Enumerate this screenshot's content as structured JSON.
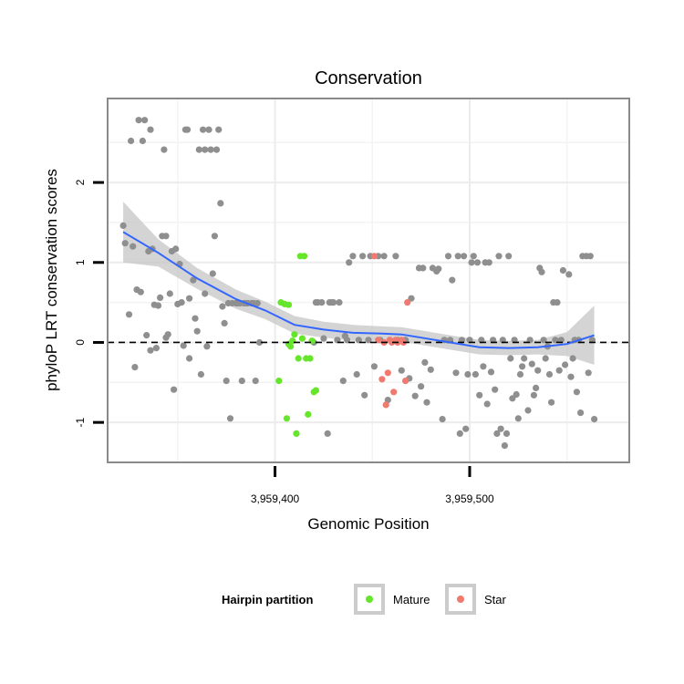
{
  "chart_data": {
    "type": "scatter",
    "title": "Conservation",
    "xlabel": "Genomic Position",
    "ylabel": "phyloP LRT conservation scores",
    "xlim": [
      3959314,
      3959582
    ],
    "ylim": [
      -1.5,
      3.05
    ],
    "x_ticks": [
      3959400,
      3959500
    ],
    "x_tick_labels": [
      "3,959,400",
      "3,959,500"
    ],
    "y_ticks": [
      -1,
      0,
      1,
      2
    ],
    "y_tick_labels": [
      "-1",
      "0",
      "1",
      "2"
    ],
    "reference_line": 0,
    "legend": {
      "title": "Hairpin partition",
      "position": "bottom",
      "entries": [
        {
          "name": "Mature",
          "color": "#66e62a"
        },
        {
          "name": "Star",
          "color": "#f07a6f"
        }
      ]
    },
    "colors": {
      "Other": "#8f8f8f",
      "Mature": "#66e62a",
      "Star": "#f07a6f",
      "smooth_line": "#3366ff",
      "confidence_band": "#c6c6c6"
    },
    "series": [
      {
        "name": "Other",
        "points": [
          [
            3959322,
            1.46
          ],
          [
            3959323,
            1.24
          ],
          [
            3959325,
            0.35
          ],
          [
            3959326,
            2.52
          ],
          [
            3959327,
            1.2
          ],
          [
            3959328,
            -0.31
          ],
          [
            3959329,
            0.66
          ],
          [
            3959330,
            2.78
          ],
          [
            3959331,
            0.63
          ],
          [
            3959332,
            2.52
          ],
          [
            3959333,
            2.78
          ],
          [
            3959334,
            0.09
          ],
          [
            3959335,
            1.14
          ],
          [
            3959336,
            2.66
          ],
          [
            3959337,
            1.17
          ],
          [
            3959338,
            0.47
          ],
          [
            3959339,
            -0.07
          ],
          [
            3959340,
            0.46
          ],
          [
            3959341,
            0.56
          ],
          [
            3959342,
            1.33
          ],
          [
            3959343,
            2.41
          ],
          [
            3959344,
            1.33
          ],
          [
            3959345,
            0.1
          ],
          [
            3959346,
            0.61
          ],
          [
            3959347,
            1.14
          ],
          [
            3959348,
            -0.59
          ],
          [
            3959349,
            1.17
          ],
          [
            3959350,
            0.48
          ],
          [
            3959351,
            0.98
          ],
          [
            3959352,
            0.5
          ],
          [
            3959353,
            -0.04
          ],
          [
            3959354,
            2.66
          ],
          [
            3959355,
            2.66
          ],
          [
            3959356,
            0.55
          ],
          [
            3959358,
            0.78
          ],
          [
            3959359,
            0.3
          ],
          [
            3959360,
            0.14
          ],
          [
            3959361,
            2.41
          ],
          [
            3959362,
            -0.4
          ],
          [
            3959363,
            2.66
          ],
          [
            3959364,
            2.41
          ],
          [
            3959365,
            -0.05
          ],
          [
            3959366,
            2.66
          ],
          [
            3959367,
            2.41
          ],
          [
            3959368,
            0.86
          ],
          [
            3959369,
            1.33
          ],
          [
            3959370,
            2.41
          ],
          [
            3959371,
            2.66
          ],
          [
            3959372,
            1.74
          ],
          [
            3959373,
            0.45
          ],
          [
            3959374,
            0.24
          ],
          [
            3959375,
            -0.48
          ],
          [
            3959376,
            0.49
          ],
          [
            3959377,
            -0.95
          ],
          [
            3959378,
            0.49
          ],
          [
            3959380,
            0.49
          ],
          [
            3959381,
            0.49
          ],
          [
            3959382,
            0.49
          ],
          [
            3959383,
            -0.48
          ],
          [
            3959384,
            0.49
          ],
          [
            3959385,
            0.49
          ],
          [
            3959386,
            0.49
          ],
          [
            3959388,
            0.49
          ],
          [
            3959389,
            0.49
          ],
          [
            3959390,
            -0.48
          ],
          [
            3959391,
            0.49
          ],
          [
            3959392,
            0.0
          ],
          [
            3959420,
            0.0
          ],
          [
            3959421,
            0.5
          ],
          [
            3959422,
            0.5
          ],
          [
            3959424,
            0.5
          ],
          [
            3959425,
            0.05
          ],
          [
            3959427,
            -1.14
          ],
          [
            3959428,
            0.5
          ],
          [
            3959429,
            0.5
          ],
          [
            3959430,
            0.5
          ],
          [
            3959432,
            0.03
          ],
          [
            3959433,
            0.5
          ],
          [
            3959435,
            -0.48
          ],
          [
            3959436,
            0.08
          ],
          [
            3959437,
            0.03
          ],
          [
            3959438,
            1.0
          ],
          [
            3959440,
            1.08
          ],
          [
            3959442,
            -0.4
          ],
          [
            3959443,
            0.03
          ],
          [
            3959445,
            1.08
          ],
          [
            3959446,
            -0.66
          ],
          [
            3959448,
            0.03
          ],
          [
            3959449,
            1.08
          ],
          [
            3959451,
            -0.3
          ],
          [
            3959453,
            1.08
          ],
          [
            3959454,
            0.03
          ],
          [
            3959456,
            1.08
          ],
          [
            3959458,
            -0.72
          ],
          [
            3959459,
            0.03
          ],
          [
            3959462,
            1.08
          ],
          [
            3959463,
            0.03
          ],
          [
            3959465,
            -0.35
          ],
          [
            3959467,
            0.03
          ],
          [
            3959469,
            -0.45
          ],
          [
            3959470,
            0.55
          ],
          [
            3959472,
            -0.67
          ],
          [
            3959474,
            0.93
          ],
          [
            3959475,
            -0.55
          ],
          [
            3959476,
            0.93
          ],
          [
            3959477,
            -0.25
          ],
          [
            3959478,
            -0.75
          ],
          [
            3959480,
            -0.34
          ],
          [
            3959481,
            0.93
          ],
          [
            3959483,
            0.89
          ],
          [
            3959484,
            0.92
          ],
          [
            3959486,
            -0.96
          ],
          [
            3959487,
            0.03
          ],
          [
            3959489,
            1.08
          ],
          [
            3959490,
            0.03
          ],
          [
            3959491,
            0.78
          ],
          [
            3959493,
            -0.38
          ],
          [
            3959494,
            1.08
          ],
          [
            3959495,
            -1.14
          ],
          [
            3959496,
            0.03
          ],
          [
            3959497,
            1.08
          ],
          [
            3959498,
            -1.08
          ],
          [
            3959499,
            -0.4
          ],
          [
            3959500,
            0.03
          ],
          [
            3959501,
            1.0
          ],
          [
            3959502,
            1.08
          ],
          [
            3959503,
            -0.4
          ],
          [
            3959504,
            1.0
          ],
          [
            3959505,
            -0.66
          ],
          [
            3959506,
            0.03
          ],
          [
            3959507,
            -0.3
          ],
          [
            3959508,
            1.0
          ],
          [
            3959509,
            -0.77
          ],
          [
            3959510,
            1.0
          ],
          [
            3959511,
            -0.37
          ],
          [
            3959512,
            0.03
          ],
          [
            3959513,
            -0.59
          ],
          [
            3959514,
            -1.14
          ],
          [
            3959515,
            1.08
          ],
          [
            3959516,
            -1.08
          ],
          [
            3959517,
            0.03
          ],
          [
            3959518,
            -1.29
          ],
          [
            3959519,
            -1.14
          ],
          [
            3959520,
            1.08
          ],
          [
            3959521,
            -0.2
          ],
          [
            3959522,
            -0.7
          ],
          [
            3959523,
            0.03
          ],
          [
            3959524,
            -0.65
          ],
          [
            3959525,
            -0.95
          ],
          [
            3959526,
            -0.4
          ],
          [
            3959527,
            -0.3
          ],
          [
            3959528,
            -0.2
          ],
          [
            3959530,
            -0.85
          ],
          [
            3959531,
            0.03
          ],
          [
            3959532,
            -0.27
          ],
          [
            3959533,
            -0.66
          ],
          [
            3959534,
            -0.57
          ],
          [
            3959535,
            -0.35
          ],
          [
            3959536,
            0.93
          ],
          [
            3959537,
            0.88
          ],
          [
            3959538,
            0.03
          ],
          [
            3959539,
            -0.2
          ],
          [
            3959540,
            -0.05
          ],
          [
            3959541,
            -0.4
          ],
          [
            3959542,
            -0.75
          ],
          [
            3959543,
            0.5
          ],
          [
            3959544,
            0.03
          ],
          [
            3959545,
            0.5
          ],
          [
            3959546,
            -0.35
          ],
          [
            3959547,
            0.03
          ],
          [
            3959548,
            0.9
          ],
          [
            3959549,
            -0.28
          ],
          [
            3959551,
            0.85
          ],
          [
            3959552,
            -0.43
          ],
          [
            3959553,
            -0.2
          ],
          [
            3959554,
            0.03
          ],
          [
            3959555,
            -0.62
          ],
          [
            3959556,
            0.03
          ],
          [
            3959557,
            -0.88
          ],
          [
            3959558,
            1.08
          ],
          [
            3959560,
            1.08
          ],
          [
            3959561,
            -0.38
          ],
          [
            3959562,
            1.08
          ],
          [
            3959563,
            0.03
          ],
          [
            3959564,
            -0.96
          ],
          [
            3959336,
            -0.1
          ],
          [
            3959344,
            0.06
          ],
          [
            3959356,
            -0.2
          ],
          [
            3959364,
            0.61
          ]
        ]
      },
      {
        "name": "Mature",
        "points": [
          [
            3959402,
            -0.48
          ],
          [
            3959403,
            0.5
          ],
          [
            3959405,
            0.48
          ],
          [
            3959406,
            -0.95
          ],
          [
            3959407,
            0.47
          ],
          [
            3959408,
            -0.05
          ],
          [
            3959409,
            0.02
          ],
          [
            3959410,
            0.1
          ],
          [
            3959411,
            -1.14
          ],
          [
            3959412,
            -0.2
          ],
          [
            3959413,
            1.08
          ],
          [
            3959414,
            0.05
          ],
          [
            3959415,
            1.08
          ],
          [
            3959416,
            -0.2
          ],
          [
            3959417,
            -0.9
          ],
          [
            3959418,
            -0.2
          ],
          [
            3959419,
            0.02
          ],
          [
            3959420,
            -0.62
          ],
          [
            3959421,
            -0.6
          ],
          [
            3959407,
            -0.02
          ]
        ]
      },
      {
        "name": "Star",
        "points": [
          [
            3959451,
            1.08
          ],
          [
            3959453,
            0.03
          ],
          [
            3959455,
            -0.46
          ],
          [
            3959456,
            0.0
          ],
          [
            3959457,
            -0.78
          ],
          [
            3959458,
            -0.38
          ],
          [
            3959459,
            0.03
          ],
          [
            3959460,
            0.0
          ],
          [
            3959461,
            -0.62
          ],
          [
            3959462,
            0.03
          ],
          [
            3959463,
            0.0
          ],
          [
            3959465,
            0.03
          ],
          [
            3959466,
            0.0
          ],
          [
            3959467,
            -0.48
          ],
          [
            3959468,
            0.5
          ]
        ]
      }
    ],
    "smooth": [
      [
        3959322,
        1.38
      ],
      [
        3959340,
        1.12
      ],
      [
        3959360,
        0.8
      ],
      [
        3959380,
        0.54
      ],
      [
        3959395,
        0.4
      ],
      [
        3959410,
        0.22
      ],
      [
        3959425,
        0.16
      ],
      [
        3959440,
        0.12
      ],
      [
        3959455,
        0.11
      ],
      [
        3959465,
        0.1
      ],
      [
        3959475,
        0.06
      ],
      [
        3959490,
        0.0
      ],
      [
        3959505,
        -0.06
      ],
      [
        3959520,
        -0.07
      ],
      [
        3959535,
        -0.06
      ],
      [
        3959550,
        -0.02
      ],
      [
        3959564,
        0.09
      ]
    ],
    "smooth_band": [
      [
        3959322,
        1.0,
        1.76
      ],
      [
        3959340,
        0.95,
        1.29
      ],
      [
        3959360,
        0.67,
        0.93
      ],
      [
        3959380,
        0.42,
        0.66
      ],
      [
        3959395,
        0.29,
        0.51
      ],
      [
        3959410,
        0.11,
        0.33
      ],
      [
        3959425,
        0.06,
        0.26
      ],
      [
        3959440,
        0.02,
        0.22
      ],
      [
        3959455,
        0.02,
        0.2
      ],
      [
        3959465,
        0.01,
        0.19
      ],
      [
        3959475,
        -0.03,
        0.15
      ],
      [
        3959490,
        -0.09,
        0.09
      ],
      [
        3959505,
        -0.15,
        0.03
      ],
      [
        3959520,
        -0.16,
        0.02
      ],
      [
        3959535,
        -0.15,
        0.03
      ],
      [
        3959550,
        -0.17,
        0.13
      ],
      [
        3959564,
        -0.28,
        0.46
      ]
    ]
  }
}
